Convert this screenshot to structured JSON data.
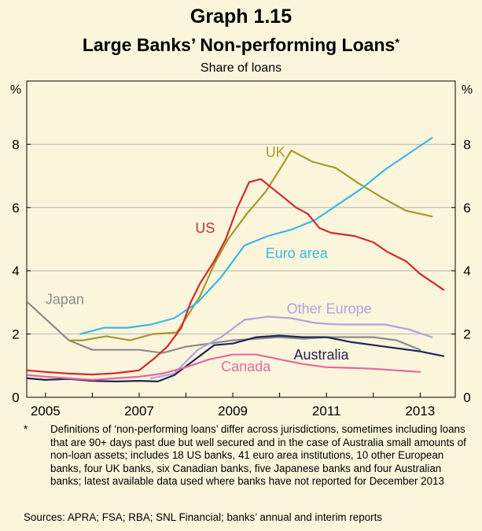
{
  "chart_data": {
    "type": "line",
    "title": "Graph 1.15",
    "subtitle": "Large Banks’ Non-performing Loans",
    "subtitle_marker": "*",
    "units_label": "Share of loans",
    "y_unit_left": "%",
    "y_unit_right": "%",
    "xlim": [
      2004.6,
      2013.75
    ],
    "ylim": [
      0,
      10
    ],
    "x_ticks": [
      2005,
      2006,
      2007,
      2008,
      2009,
      2010,
      2011,
      2012,
      2013
    ],
    "x_tick_labels": [
      {
        "x": 2005,
        "label": "2005"
      },
      {
        "x": 2007,
        "label": "2007"
      },
      {
        "x": 2009,
        "label": "2009"
      },
      {
        "x": 2011,
        "label": "2011"
      },
      {
        "x": 2013,
        "label": "2013"
      }
    ],
    "y_ticks": [
      0,
      2,
      4,
      6,
      8,
      10
    ],
    "y_tick_labels": [
      "0",
      "2",
      "4",
      "6",
      "8"
    ],
    "grid": true,
    "series": [
      {
        "name": "Japan",
        "label": "Japan",
        "color": "#8c8c8c",
        "label_pos": {
          "x": 2005.0,
          "y": 2.95,
          "anchor": "start"
        },
        "points": [
          [
            2004.62,
            3.0
          ],
          [
            2005.5,
            1.8
          ],
          [
            2006.0,
            1.5
          ],
          [
            2006.5,
            1.5
          ],
          [
            2007.0,
            1.5
          ],
          [
            2007.5,
            1.4
          ],
          [
            2008.0,
            1.6
          ],
          [
            2008.5,
            1.7
          ],
          [
            2009.0,
            1.8
          ],
          [
            2009.5,
            1.85
          ],
          [
            2010.0,
            1.9
          ],
          [
            2010.5,
            1.85
          ],
          [
            2011.0,
            1.9
          ],
          [
            2011.5,
            1.9
          ],
          [
            2012.0,
            1.9
          ],
          [
            2012.5,
            1.8
          ],
          [
            2013.0,
            1.5
          ]
        ]
      },
      {
        "name": "UK",
        "label": "UK",
        "color": "#a7992d",
        "label_pos": {
          "x": 2009.7,
          "y": 7.6,
          "anchor": "start"
        },
        "points": [
          [
            2005.5,
            1.8
          ],
          [
            2005.8,
            1.8
          ],
          [
            2006.3,
            1.93
          ],
          [
            2006.8,
            1.8
          ],
          [
            2007.3,
            2.0
          ],
          [
            2007.8,
            2.05
          ],
          [
            2008.0,
            2.5
          ],
          [
            2008.3,
            3.2
          ],
          [
            2008.6,
            4.2
          ],
          [
            2008.9,
            5.0
          ],
          [
            2009.3,
            5.8
          ],
          [
            2009.7,
            6.5
          ],
          [
            2010.0,
            7.2
          ],
          [
            2010.25,
            7.8
          ],
          [
            2010.7,
            7.45
          ],
          [
            2011.2,
            7.25
          ],
          [
            2011.7,
            6.75
          ],
          [
            2012.2,
            6.3
          ],
          [
            2012.7,
            5.9
          ],
          [
            2013.25,
            5.72
          ]
        ]
      },
      {
        "name": "Euro area",
        "label": "Euro area",
        "color": "#3cb7e2",
        "label_pos": {
          "x": 2009.7,
          "y": 4.4,
          "anchor": "start"
        },
        "points": [
          [
            2005.75,
            2.0
          ],
          [
            2006.25,
            2.2
          ],
          [
            2006.75,
            2.2
          ],
          [
            2007.25,
            2.3
          ],
          [
            2007.75,
            2.5
          ],
          [
            2008.25,
            3.0
          ],
          [
            2008.75,
            3.8
          ],
          [
            2009.25,
            4.8
          ],
          [
            2009.75,
            5.1
          ],
          [
            2010.25,
            5.3
          ],
          [
            2010.75,
            5.6
          ],
          [
            2011.25,
            6.1
          ],
          [
            2011.75,
            6.6
          ],
          [
            2012.25,
            7.2
          ],
          [
            2012.75,
            7.7
          ],
          [
            2013.25,
            8.2
          ]
        ]
      },
      {
        "name": "US",
        "label": "US",
        "color": "#d12a2e",
        "label_pos": {
          "x": 2008.2,
          "y": 5.2,
          "anchor": "start"
        },
        "points": [
          [
            2004.62,
            0.85
          ],
          [
            2005.0,
            0.8
          ],
          [
            2005.5,
            0.75
          ],
          [
            2006.0,
            0.72
          ],
          [
            2006.5,
            0.76
          ],
          [
            2007.0,
            0.85
          ],
          [
            2007.3,
            1.2
          ],
          [
            2007.6,
            1.6
          ],
          [
            2007.9,
            2.2
          ],
          [
            2008.1,
            3.0
          ],
          [
            2008.3,
            3.6
          ],
          [
            2008.6,
            4.3
          ],
          [
            2008.85,
            5.0
          ],
          [
            2009.1,
            6.0
          ],
          [
            2009.35,
            6.8
          ],
          [
            2009.6,
            6.9
          ],
          [
            2009.85,
            6.6
          ],
          [
            2010.1,
            6.3
          ],
          [
            2010.35,
            6.0
          ],
          [
            2010.6,
            5.8
          ],
          [
            2010.85,
            5.35
          ],
          [
            2011.1,
            5.2
          ],
          [
            2011.6,
            5.1
          ],
          [
            2012.0,
            4.9
          ],
          [
            2012.3,
            4.6
          ],
          [
            2012.7,
            4.3
          ],
          [
            2013.0,
            3.9
          ],
          [
            2013.3,
            3.6
          ],
          [
            2013.5,
            3.4
          ]
        ]
      },
      {
        "name": "Other Europe",
        "label": "Other Europe",
        "color": "#b1a5dc",
        "label_pos": {
          "x": 2010.15,
          "y": 2.65,
          "anchor": "start"
        },
        "points": [
          [
            2007.25,
            0.6
          ],
          [
            2007.75,
            0.75
          ],
          [
            2008.25,
            1.5
          ],
          [
            2008.75,
            1.9
          ],
          [
            2009.25,
            2.45
          ],
          [
            2009.75,
            2.55
          ],
          [
            2010.25,
            2.5
          ],
          [
            2010.75,
            2.35
          ],
          [
            2011.25,
            2.3
          ],
          [
            2011.75,
            2.3
          ],
          [
            2012.25,
            2.3
          ],
          [
            2012.75,
            2.15
          ],
          [
            2013.25,
            1.9
          ]
        ]
      },
      {
        "name": "Australia",
        "label": "Australia",
        "color": "#222456",
        "label_pos": {
          "x": 2010.3,
          "y": 1.2,
          "anchor": "start"
        },
        "points": [
          [
            2004.62,
            0.6
          ],
          [
            2005.0,
            0.55
          ],
          [
            2005.5,
            0.58
          ],
          [
            2006.0,
            0.52
          ],
          [
            2006.5,
            0.5
          ],
          [
            2007.0,
            0.52
          ],
          [
            2007.4,
            0.5
          ],
          [
            2007.75,
            0.7
          ],
          [
            2008.2,
            1.2
          ],
          [
            2008.6,
            1.65
          ],
          [
            2009.0,
            1.7
          ],
          [
            2009.5,
            1.9
          ],
          [
            2010.0,
            1.95
          ],
          [
            2010.5,
            1.9
          ],
          [
            2011.0,
            1.9
          ],
          [
            2011.5,
            1.75
          ],
          [
            2012.0,
            1.65
          ],
          [
            2012.5,
            1.55
          ],
          [
            2013.0,
            1.45
          ],
          [
            2013.5,
            1.3
          ]
        ]
      },
      {
        "name": "Canada",
        "label": "Canada",
        "color": "#e6689e",
        "label_pos": {
          "x": 2008.75,
          "y": 0.82,
          "anchor": "start"
        },
        "points": [
          [
            2004.62,
            0.7
          ],
          [
            2005.0,
            0.65
          ],
          [
            2005.5,
            0.6
          ],
          [
            2006.0,
            0.55
          ],
          [
            2006.5,
            0.6
          ],
          [
            2007.0,
            0.65
          ],
          [
            2007.5,
            0.75
          ],
          [
            2008.0,
            0.95
          ],
          [
            2008.5,
            1.2
          ],
          [
            2009.0,
            1.35
          ],
          [
            2009.5,
            1.35
          ],
          [
            2010.0,
            1.2
          ],
          [
            2010.5,
            1.05
          ],
          [
            2011.0,
            0.95
          ],
          [
            2011.5,
            0.93
          ],
          [
            2012.0,
            0.9
          ],
          [
            2012.5,
            0.85
          ],
          [
            2013.0,
            0.8
          ]
        ]
      }
    ]
  },
  "footnote": {
    "marker": "*",
    "text": "Definitions of ‘non-performing loans’ differ across jurisdictions, sometimes including loans that are 90+ days past due but well secured and in the case of Australia small amounts of non-loan assets; includes 18 US banks, 41 euro area institutions, 10 other European banks, four UK banks, six Canadian banks, five Japanese banks and four Australian banks; latest available data used where banks have not reported for December 2013"
  },
  "sources": "Sources: APRA; FSA; RBA; SNL Financial; banks’ annual and interim reports"
}
